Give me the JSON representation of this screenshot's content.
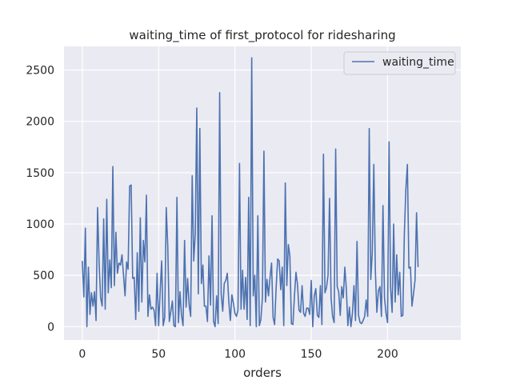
{
  "chart_data": {
    "type": "line",
    "title": "waiting_time of first_protocol for ridesharing",
    "xlabel": "orders",
    "ylabel": "",
    "xlim": [
      -12,
      248
    ],
    "ylim": [
      -130,
      2730
    ],
    "xticks": [
      0,
      50,
      100,
      150,
      200
    ],
    "yticks": [
      0,
      500,
      1000,
      1500,
      2000,
      2500
    ],
    "grid": true,
    "legend_position": "upper right",
    "series": [
      {
        "name": "waiting_time",
        "color": "#4c72b0",
        "values": [
          640,
          290,
          960,
          0,
          580,
          120,
          330,
          200,
          340,
          60,
          1160,
          620,
          280,
          200,
          1050,
          170,
          1240,
          330,
          650,
          380,
          1560,
          400,
          920,
          520,
          620,
          600,
          700,
          500,
          300,
          630,
          560,
          1370,
          1380,
          470,
          480,
          70,
          720,
          150,
          1060,
          240,
          840,
          630,
          1280,
          100,
          310,
          170,
          190,
          160,
          10,
          520,
          10,
          340,
          640,
          10,
          90,
          1160,
          780,
          50,
          150,
          250,
          10,
          0,
          1260,
          40,
          340,
          110,
          10,
          840,
          190,
          470,
          210,
          100,
          1470,
          640,
          900,
          2130,
          320,
          1930,
          420,
          600,
          200,
          200,
          50,
          690,
          210,
          1080,
          50,
          0,
          300,
          30,
          2280,
          320,
          150,
          420,
          450,
          520,
          240,
          60,
          310,
          230,
          130,
          100,
          160,
          1590,
          170,
          550,
          170,
          480,
          70,
          1260,
          10,
          2620,
          300,
          500,
          0,
          1080,
          10,
          70,
          280,
          1710,
          240,
          460,
          300,
          480,
          620,
          90,
          20,
          380,
          660,
          640,
          360,
          580,
          10,
          1400,
          400,
          800,
          690,
          30,
          20,
          300,
          530,
          410,
          160,
          140,
          400,
          130,
          100,
          180,
          180,
          120,
          450,
          0,
          300,
          370,
          110,
          90,
          400,
          20,
          1680,
          330,
          380,
          500,
          1250,
          280,
          100,
          40,
          1730,
          390,
          340,
          110,
          390,
          280,
          580,
          370,
          10,
          190,
          0,
          130,
          400,
          60,
          830,
          110,
          40,
          30,
          60,
          100,
          260,
          100,
          1930,
          460,
          720,
          1580,
          550,
          140,
          350,
          390,
          100,
          1180,
          280,
          130,
          40,
          1800,
          380,
          140,
          1000,
          240,
          700,
          310,
          530,
          100,
          110,
          900,
          1340,
          1580,
          570,
          580,
          200,
          320,
          450,
          1110,
          580
        ]
      }
    ]
  }
}
